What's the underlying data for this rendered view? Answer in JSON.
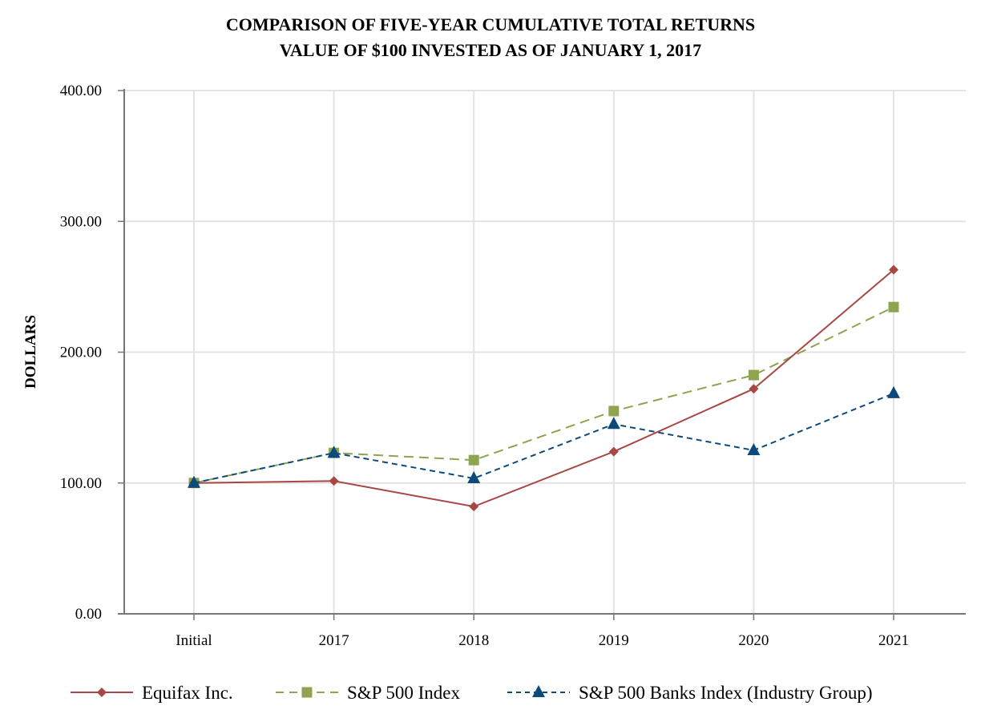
{
  "chart_data": {
    "type": "line",
    "title": "COMPARISON OF FIVE-YEAR CUMULATIVE TOTAL RETURNS",
    "subtitle": "VALUE OF $100 INVESTED AS OF JANUARY 1, 2017",
    "xlabel": "",
    "ylabel": "DOLLARS",
    "categories": [
      "Initial",
      "2017",
      "2018",
      "2019",
      "2020",
      "2021"
    ],
    "ylim": [
      0,
      400
    ],
    "yticks": [
      0,
      100,
      200,
      300,
      400
    ],
    "ytick_labels": [
      "0.00",
      "100.00",
      "200.00",
      "300.00",
      "400.00"
    ],
    "grid": true,
    "legend_position": "bottom",
    "series": [
      {
        "name": "Equifax Inc.",
        "values": [
          100,
          101.5,
          82,
          124,
          172,
          263
        ],
        "color": "#a84844",
        "dash": "solid",
        "marker": "diamond"
      },
      {
        "name": "S&P 500 Index",
        "values": [
          100,
          123,
          117.5,
          155,
          182.5,
          234.5
        ],
        "color": "#8ea44e",
        "dash": "long-dash",
        "marker": "square"
      },
      {
        "name": "S&P 500 Banks Index (Industry Group)",
        "values": [
          100,
          123,
          103.5,
          145,
          125,
          168.5
        ],
        "color": "#0d4a7c",
        "dash": "short-dash",
        "marker": "triangle"
      }
    ]
  }
}
